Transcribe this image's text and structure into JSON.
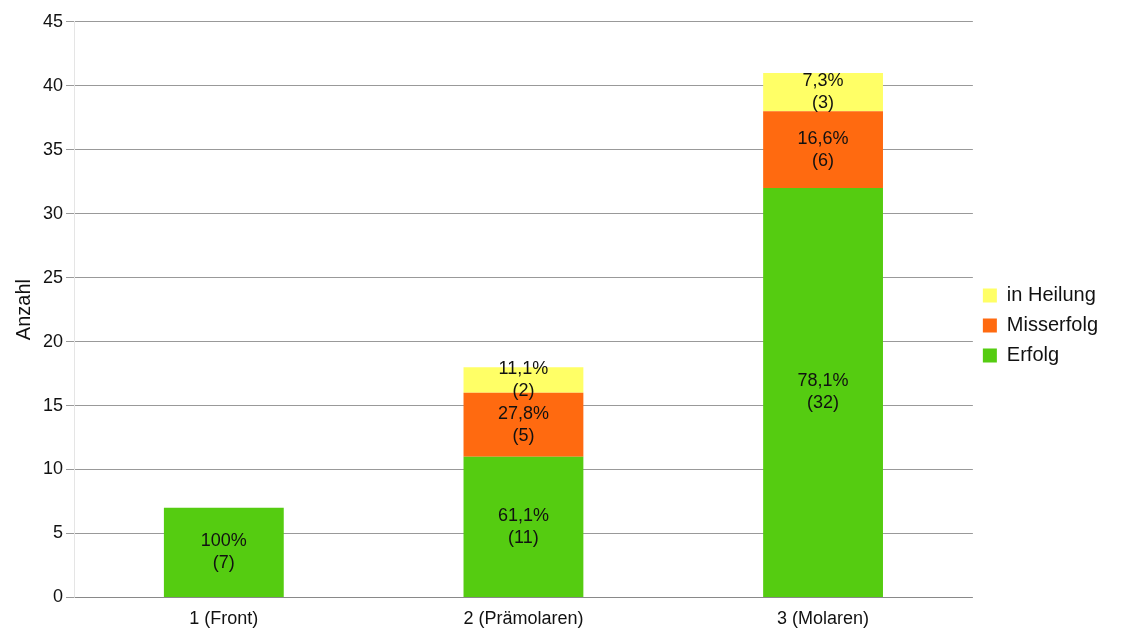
{
  "chart_data": {
    "type": "bar",
    "stacked": true,
    "ylabel": "Anzahl",
    "categories": [
      "1 (Front)",
      "2 (Prämolaren)",
      "3 (Molaren)"
    ],
    "series": [
      {
        "name": "Erfolg",
        "color": "#55cc11",
        "values": [
          7,
          11,
          32
        ],
        "value_labels": [
          "100%\n(7)",
          "61,1%\n(11)",
          "78,1%\n(32)"
        ]
      },
      {
        "name": "Misserfolg",
        "color": "#ff6a10",
        "values": [
          null,
          5,
          6
        ],
        "value_labels": [
          null,
          "27,8%\n(5)",
          "16,6%\n(6)"
        ]
      },
      {
        "name": "in Heilung",
        "color": "#ffff66",
        "values": [
          null,
          2,
          3
        ],
        "value_labels": [
          null,
          "11,1%\n(2)",
          "7,3%\n(3)"
        ]
      }
    ],
    "ylim": [
      0,
      45
    ],
    "yticks": [
      0,
      5,
      10,
      15,
      20,
      25,
      30,
      35,
      40,
      45
    ],
    "grid": "y",
    "legend": "right"
  }
}
